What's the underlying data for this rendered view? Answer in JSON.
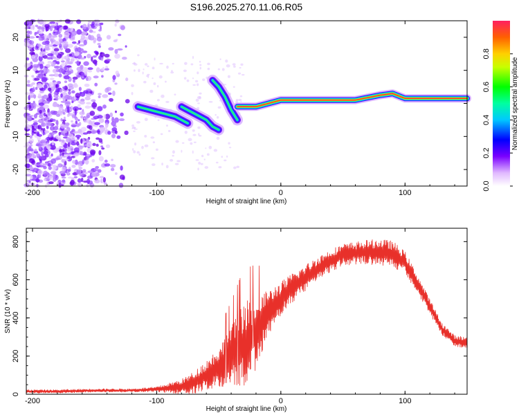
{
  "title": "S196.2025.270.11.06.R05",
  "chart_data": [
    {
      "type": "heatmap",
      "xlabel": "Height of straight line (km)",
      "ylabel": "Frequency (Hz)",
      "xlim": [
        -205,
        150
      ],
      "ylim": [
        -25,
        25
      ],
      "xticks": [
        -200,
        -100,
        0,
        100
      ],
      "yticks": [
        -20,
        -10,
        0,
        10,
        20
      ],
      "colorbar": {
        "label": "Normalized spectral amplitude",
        "range": [
          0,
          1
        ],
        "ticks": [
          "0.0",
          "0.2",
          "0.4",
          "0.6",
          "0.8"
        ]
      },
      "features": [
        {
          "name": "noise",
          "x_range": [
            -205,
            -120
          ],
          "freq_range": [
            -25,
            25
          ]
        },
        {
          "name": "streak",
          "x": [
            -115,
            -105,
            -95,
            -85,
            -75
          ],
          "freq": [
            -1,
            -2,
            -3,
            -4,
            -6
          ]
        },
        {
          "name": "streak",
          "x": [
            -80,
            -70,
            -60,
            -55,
            -50
          ],
          "freq": [
            -1,
            -3,
            -5,
            -7,
            -8
          ]
        },
        {
          "name": "streak",
          "x": [
            -55,
            -50,
            -45,
            -40,
            -35
          ],
          "freq": [
            7,
            5,
            2,
            -2,
            -5
          ]
        },
        {
          "name": "carrier",
          "x": [
            -35,
            -20,
            0,
            20,
            40,
            60,
            80,
            90,
            100,
            120,
            150
          ],
          "freq": [
            -1,
            -1,
            1,
            1,
            1,
            1,
            2.5,
            3,
            1.5,
            1.5,
            1.5
          ]
        }
      ]
    },
    {
      "type": "line",
      "xlabel": "Height of straight line (km)",
      "ylabel": "SNR (10 * v/v)",
      "xlim": [
        -205,
        150
      ],
      "ylim": [
        0,
        870
      ],
      "xticks": [
        -200,
        -100,
        0,
        100
      ],
      "yticks": [
        0,
        200,
        400,
        600,
        800
      ],
      "series": [
        {
          "name": "SNR",
          "color": "#e8302a",
          "x": [
            -205,
            -180,
            -150,
            -120,
            -100,
            -80,
            -70,
            -60,
            -50,
            -40,
            -30,
            -20,
            -15,
            -10,
            -5,
            0,
            10,
            20,
            30,
            40,
            50,
            60,
            70,
            80,
            90,
            100,
            110,
            120,
            130,
            140,
            150
          ],
          "y": [
            15,
            15,
            20,
            20,
            25,
            40,
            60,
            100,
            140,
            200,
            260,
            320,
            380,
            420,
            470,
            500,
            560,
            610,
            660,
            700,
            730,
            740,
            745,
            745,
            735,
            690,
            580,
            460,
            340,
            280,
            270
          ],
          "amplitude": [
            10,
            10,
            10,
            10,
            15,
            40,
            60,
            80,
            110,
            160,
            220,
            200,
            160,
            120,
            100,
            90,
            80,
            70,
            65,
            60,
            60,
            60,
            65,
            70,
            70,
            60,
            50,
            40,
            35,
            30,
            30
          ]
        }
      ]
    }
  ]
}
